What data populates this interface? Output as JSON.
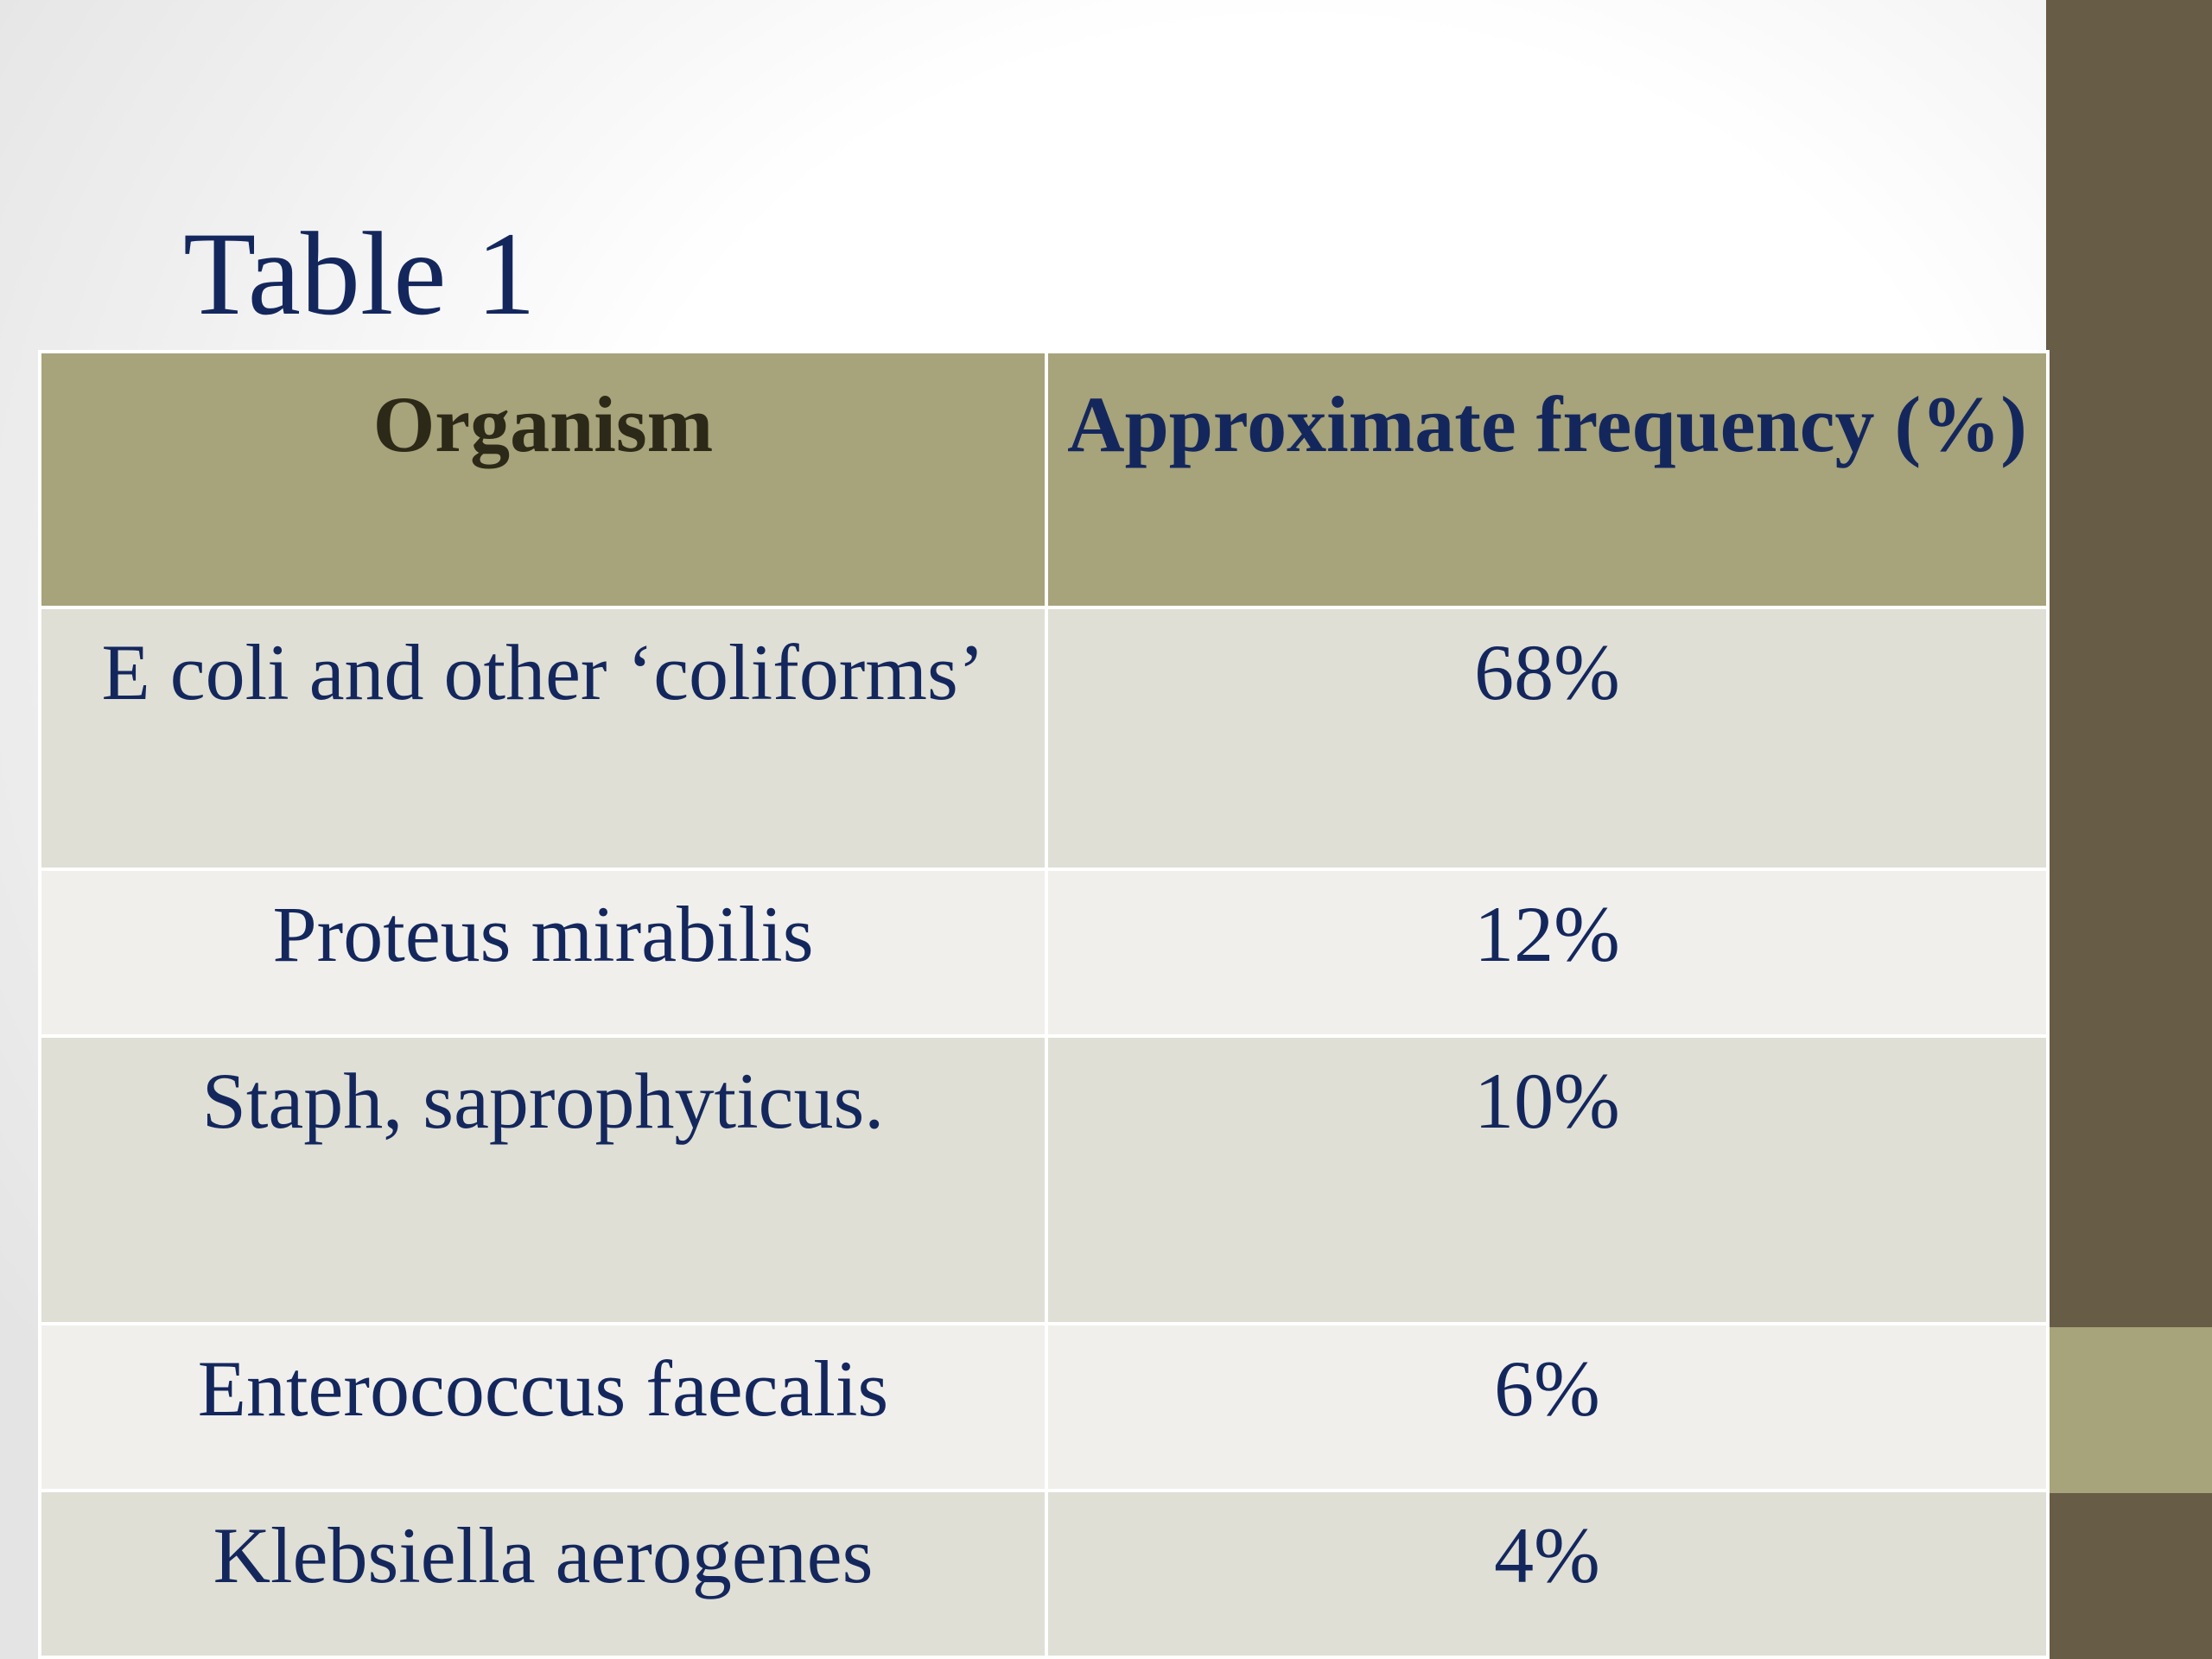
{
  "slide": {
    "title": "Table 1",
    "colors": {
      "side_bar": "#675c45",
      "side_accent": "#a7a37a",
      "header_bg": "#a7a37a",
      "row_dark": "#dfdfd5",
      "row_light": "#f0efeb",
      "text": "#14275d"
    }
  },
  "table": {
    "headers": [
      "Organism",
      "Approximate frequency (%)"
    ],
    "rows": [
      {
        "organism": "E coli and other ‘coliforms’",
        "frequency": "68%"
      },
      {
        "organism": "Proteus mirabilis",
        "frequency": "12%"
      },
      {
        "organism": "Staph, saprophyticus.",
        "frequency": "10%"
      },
      {
        "organism": "Enterococcus faecalis",
        "frequency": "6%"
      },
      {
        "organism": "Klebsiella aerogenes",
        "frequency": "4%"
      }
    ]
  }
}
